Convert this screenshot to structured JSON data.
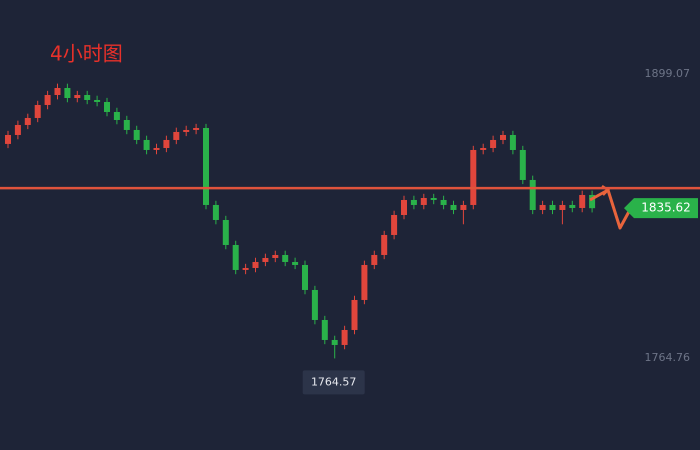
{
  "chart_data": {
    "type": "candlestick",
    "title": "4小时图",
    "open": [
      1866.0,
      1870.23,
      1874.96,
      1878.27,
      1884.42,
      1889.14,
      1892.45,
      1887.72,
      1889.14,
      1886.78,
      1885.84,
      1881.11,
      1877.32,
      1872.6,
      1867.87,
      1863.14,
      1864.08,
      1867.87,
      1871.65,
      1872.6,
      1873.54,
      1837.13,
      1830.03,
      1818.21,
      1806.39,
      1807.33,
      1810.17,
      1812.06,
      1813.48,
      1810.17,
      1808.75,
      1796.93,
      1782.74,
      1773.28,
      1770.92,
      1778.01,
      1792.2,
      1808.75,
      1813.48,
      1822.94,
      1832.39,
      1839.49,
      1837.13,
      1840.43,
      1839.49,
      1837.13,
      1834.76,
      1837.13,
      1863.14,
      1864.08,
      1867.87,
      1870.23,
      1863.14,
      1848.96,
      1834.76,
      1837.13,
      1834.76,
      1837.13,
      1835.71,
      1841.86
    ],
    "high": [
      1872.2,
      1877.0,
      1880.3,
      1886.4,
      1891.1,
      1894.5,
      1894.5,
      1891.1,
      1891.1,
      1888.8,
      1887.8,
      1883.1,
      1879.3,
      1874.6,
      1869.9,
      1866.1,
      1869.9,
      1873.7,
      1874.6,
      1875.5,
      1875.5,
      1839.1,
      1832.0,
      1820.2,
      1809.3,
      1812.2,
      1814.1,
      1815.5,
      1815.5,
      1812.2,
      1810.8,
      1798.9,
      1784.7,
      1775.3,
      1780.0,
      1794.2,
      1810.8,
      1815.5,
      1824.9,
      1834.4,
      1841.5,
      1841.5,
      1842.4,
      1842.4,
      1841.5,
      1839.1,
      1839.1,
      1865.1,
      1866.1,
      1869.9,
      1872.2,
      1872.2,
      1865.1,
      1851.0,
      1839.1,
      1839.1,
      1839.1,
      1839.1,
      1843.9,
      1843.9
    ],
    "low": [
      1864.0,
      1868.2,
      1873.0,
      1876.3,
      1882.4,
      1887.1,
      1885.7,
      1885.7,
      1884.8,
      1883.8,
      1879.1,
      1875.3,
      1870.6,
      1865.9,
      1861.1,
      1861.1,
      1862.1,
      1865.9,
      1869.7,
      1870.6,
      1835.1,
      1828.0,
      1816.2,
      1804.4,
      1804.4,
      1805.3,
      1808.2,
      1810.1,
      1808.2,
      1806.8,
      1794.9,
      1780.7,
      1771.3,
      1764.57,
      1768.9,
      1776.0,
      1790.2,
      1806.8,
      1811.5,
      1820.9,
      1830.4,
      1835.1,
      1835.1,
      1837.5,
      1835.1,
      1832.8,
      1828.0,
      1835.1,
      1861.1,
      1862.1,
      1865.9,
      1861.1,
      1847.0,
      1832.8,
      1832.8,
      1832.8,
      1828.0,
      1833.7,
      1833.7,
      1833.6
    ],
    "close": [
      1870.23,
      1874.96,
      1878.27,
      1884.42,
      1889.14,
      1892.45,
      1887.72,
      1889.14,
      1886.78,
      1885.84,
      1881.11,
      1877.32,
      1872.6,
      1867.87,
      1863.14,
      1864.08,
      1867.87,
      1871.65,
      1872.6,
      1873.54,
      1837.13,
      1830.03,
      1818.21,
      1806.39,
      1807.33,
      1810.17,
      1812.06,
      1813.48,
      1810.17,
      1808.75,
      1796.93,
      1782.74,
      1773.28,
      1770.92,
      1778.01,
      1792.2,
      1808.75,
      1813.48,
      1822.94,
      1832.39,
      1839.49,
      1837.13,
      1840.43,
      1839.49,
      1837.13,
      1834.76,
      1837.13,
      1863.14,
      1864.08,
      1867.87,
      1870.23,
      1863.14,
      1848.96,
      1834.76,
      1837.13,
      1834.76,
      1837.13,
      1835.71,
      1841.86,
      1835.62
    ],
    "up_color": "#e0463c",
    "down_color": "#2ab24a",
    "ylim": [
      1721.25,
      1934.07
    ],
    "yticks": [
      1899.07,
      1764.76
    ],
    "level": 1845.1,
    "level_color": "#e0533c"
  }
}
